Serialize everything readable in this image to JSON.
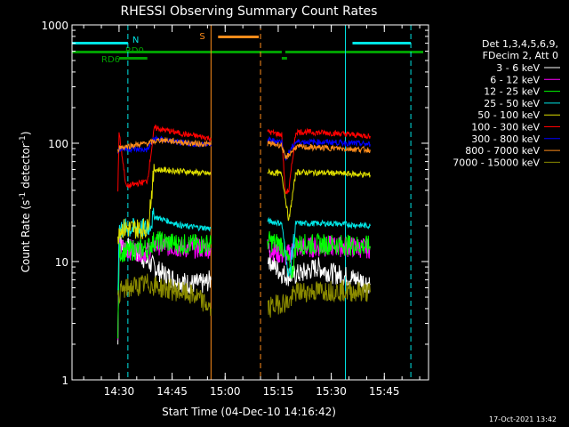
{
  "chart_data": {
    "type": "line",
    "title": "RHESSI Observing Summary Count Rates",
    "xlabel": "Start Time (04-Dec-10 14:16:42)",
    "ylabel_main": "Count Rate (s",
    "ylabel_sup1": "-1",
    "ylabel_mid": " detector",
    "ylabel_sup2": "-1",
    "ylabel_end": ")",
    "y_scale": "log",
    "ylim": [
      1,
      1000
    ],
    "xlim": [
      "14:16:42",
      "15:57:30"
    ],
    "y_ticks": [
      "1",
      "10",
      "100",
      "1000"
    ],
    "x_ticks": [
      "14:30",
      "14:45",
      "15:00",
      "15:15",
      "15:30",
      "15:45"
    ],
    "legend_header": [
      "Det 1,3,4,5,6,9,",
      "FDecim 2, Att 0"
    ],
    "legend_placement": "right",
    "timestamp": "17-Oct-2021 13:42",
    "annotations": {
      "N": {
        "label": "N",
        "color": "#00e5e5"
      },
      "S": {
        "label": "S",
        "color": "#ff8c1a"
      },
      "RD0": {
        "label": "RD0",
        "color": "#00a000"
      },
      "RD6": {
        "label": "RD6",
        "color": "#00a000"
      }
    },
    "flags": {
      "night": [
        [
          "14:16:42",
          "14:32:30"
        ],
        [
          "15:36:00",
          "15:52:30"
        ]
      ],
      "saa": [
        [
          "14:58:00",
          "15:09:30"
        ]
      ],
      "rd0": [
        [
          "14:16:42",
          "15:16:00"
        ],
        [
          "15:17:00",
          "15:56:00"
        ]
      ],
      "rd6": [
        [
          "14:30:00",
          "14:38:00"
        ],
        [
          "15:16:00",
          "15:17:30"
        ]
      ]
    },
    "vlines": [
      {
        "time": "14:16:42",
        "color": "#00e5e5",
        "style": "solid"
      },
      {
        "time": "14:32:30",
        "color": "#00e5e5",
        "style": "dashed"
      },
      {
        "time": "14:56:00",
        "color": "#ff8c1a",
        "style": "solid"
      },
      {
        "time": "15:10:00",
        "color": "#ff8c1a",
        "style": "dashed"
      },
      {
        "time": "15:34:00",
        "color": "#00e5e5",
        "style": "solid"
      },
      {
        "time": "15:52:30",
        "color": "#00e5e5",
        "style": "dashed"
      }
    ],
    "series": [
      {
        "name": "3 - 6 keV",
        "color": "#ffffff",
        "segments": [
          {
            "t": [
              "14:29:40",
              "14:30:00",
              "14:35:00",
              "14:38:00",
              "14:42:00",
              "14:46:00",
              "14:50:00",
              "14:54:00",
              "14:56:00"
            ],
            "v": [
              2,
              14,
              12,
              10,
              8,
              7,
              6.5,
              6.5,
              7
            ]
          },
          {
            "t": [
              "15:12:00",
              "15:14:00",
              "15:16:00",
              "15:18:00",
              "15:22:00",
              "15:26:00",
              "15:30:00",
              "15:34:00",
              "15:38:00",
              "15:41:00"
            ],
            "v": [
              11,
              9,
              8,
              7.5,
              8,
              9,
              8,
              7.5,
              7,
              6.5
            ]
          }
        ]
      },
      {
        "name": "6 - 12 keV",
        "color": "#ff00ff",
        "segments": [
          {
            "t": [
              "14:29:40",
              "14:30:00",
              "14:38:00",
              "14:40:00",
              "14:48:00",
              "14:56:00"
            ],
            "v": [
              2,
              13,
              12,
              14,
              13,
              13
            ]
          },
          {
            "t": [
              "15:12:00",
              "15:17:00",
              "15:20:00",
              "15:30:00",
              "15:41:00"
            ],
            "v": [
              13,
              11,
              13,
              13.5,
              13
            ]
          }
        ]
      },
      {
        "name": "12 - 25 keV",
        "color": "#00ff00",
        "segments": [
          {
            "t": [
              "14:29:40",
              "14:30:00",
              "14:38:00",
              "14:40:00",
              "14:48:00",
              "14:56:00"
            ],
            "v": [
              2,
              12,
              13,
              15,
              14,
              14
            ]
          },
          {
            "t": [
              "15:12:00",
              "15:16:00",
              "15:19:00",
              "15:20:00",
              "15:30:00",
              "15:41:00"
            ],
            "v": [
              15,
              14,
              8,
              14,
              14,
              13.5
            ]
          }
        ]
      },
      {
        "name": "25 - 50 keV",
        "color": "#00e5e5",
        "segments": [
          {
            "t": [
              "14:29:40",
              "14:30:00",
              "14:38:00",
              "14:40:00",
              "14:48:00",
              "14:56:00"
            ],
            "v": [
              5,
              19,
              19,
              24,
              20,
              19
            ]
          },
          {
            "t": [
              "15:12:00",
              "15:16:00",
              "15:18:00",
              "15:20:00",
              "15:30:00",
              "15:41:00"
            ],
            "v": [
              22,
              21,
              7,
              21,
              21,
              20
            ]
          }
        ]
      },
      {
        "name": "50 - 100 keV",
        "color": "#e0e000",
        "segments": [
          {
            "t": [
              "14:29:40",
              "14:30:00",
              "14:38:00",
              "14:40:00",
              "14:48:00",
              "14:56:00"
            ],
            "v": [
              15,
              19,
              19,
              60,
              58,
              55
            ]
          },
          {
            "t": [
              "15:12:00",
              "15:16:00",
              "15:18:00",
              "15:20:00",
              "15:30:00",
              "15:41:00"
            ],
            "v": [
              57,
              55,
              22,
              57,
              56,
              54
            ]
          }
        ]
      },
      {
        "name": "100 - 300 keV",
        "color": "#ff0000",
        "segments": [
          {
            "t": [
              "14:29:40",
              "14:30:00",
              "14:32:00",
              "14:38:00",
              "14:40:00",
              "14:48:00",
              "14:56:00"
            ],
            "v": [
              40,
              125,
              43,
              48,
              135,
              120,
              110
            ]
          },
          {
            "t": [
              "15:12:00",
              "15:16:00",
              "15:17:00",
              "15:18:00",
              "15:20:00",
              "15:30:00",
              "15:41:00"
            ],
            "v": [
              125,
              118,
              38,
              40,
              125,
              122,
              115
            ]
          }
        ]
      },
      {
        "name": "300 - 800 keV",
        "color": "#0000ff",
        "segments": [
          {
            "t": [
              "14:29:40",
              "14:30:00",
              "14:38:00",
              "14:40:00",
              "14:48:00",
              "14:56:00"
            ],
            "v": [
              80,
              90,
              88,
              110,
              100,
              97
            ]
          },
          {
            "t": [
              "15:12:00",
              "15:16:00",
              "15:17:00",
              "15:20:00",
              "15:30:00",
              "15:41:00"
            ],
            "v": [
              107,
              103,
              75,
              103,
              102,
              98
            ]
          }
        ]
      },
      {
        "name": "800 - 7000 keV",
        "color": "#ff8c1a",
        "segments": [
          {
            "t": [
              "14:29:40",
              "14:30:00",
              "14:38:00",
              "14:42:00",
              "14:50:00",
              "14:56:00"
            ],
            "v": [
              85,
              92,
              100,
              107,
              100,
              98
            ]
          },
          {
            "t": [
              "15:12:00",
              "15:16:00",
              "15:17:00",
              "15:20:00",
              "15:30:00",
              "15:41:00"
            ],
            "v": [
              100,
              96,
              74,
              93,
              91,
              88
            ]
          }
        ]
      },
      {
        "name": "7000 - 15000 keV",
        "color": "#8b8b00",
        "segments": [
          {
            "t": [
              "14:29:40",
              "14:30:00",
              "14:33:00",
              "14:38:00",
              "14:42:00",
              "14:48:00",
              "14:52:00",
              "14:56:00"
            ],
            "v": [
              4.5,
              5.5,
              6,
              6.5,
              6,
              5.5,
              5,
              4
            ]
          },
          {
            "t": [
              "15:12:00",
              "15:16:00",
              "15:18:00",
              "15:20:00",
              "15:30:00",
              "15:41:00"
            ],
            "v": [
              4,
              4.5,
              4.5,
              5.5,
              5.7,
              5.5
            ]
          }
        ]
      }
    ]
  }
}
